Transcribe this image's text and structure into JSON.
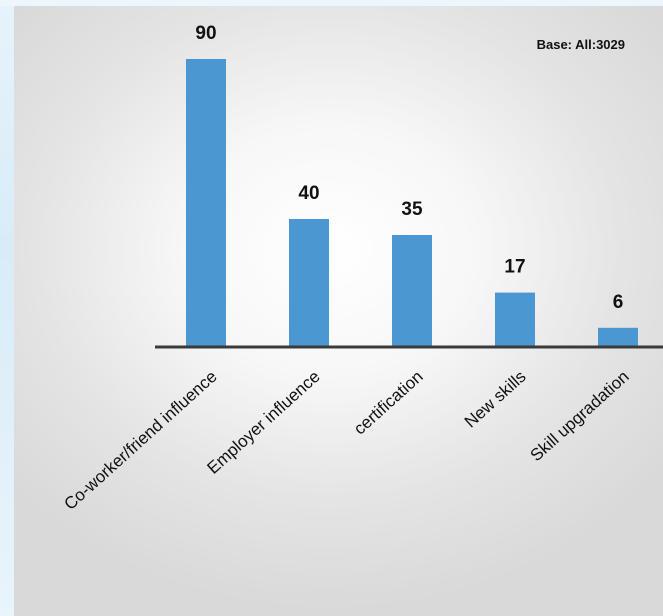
{
  "base_note": "Base: All:3029",
  "colors": {
    "bar": "#4a97d2",
    "axis": "#3a3a3a"
  },
  "chart_data": {
    "type": "bar",
    "categories": [
      "Co-worker/friend influence",
      "Employer influence",
      "certification",
      "New skills",
      "Skill upgradation"
    ],
    "values": [
      90,
      40,
      35,
      17,
      6
    ],
    "title": "",
    "xlabel": "",
    "ylabel": "",
    "ylim": [
      0,
      90
    ],
    "grid": false,
    "legend": "none",
    "data_labels": true
  }
}
